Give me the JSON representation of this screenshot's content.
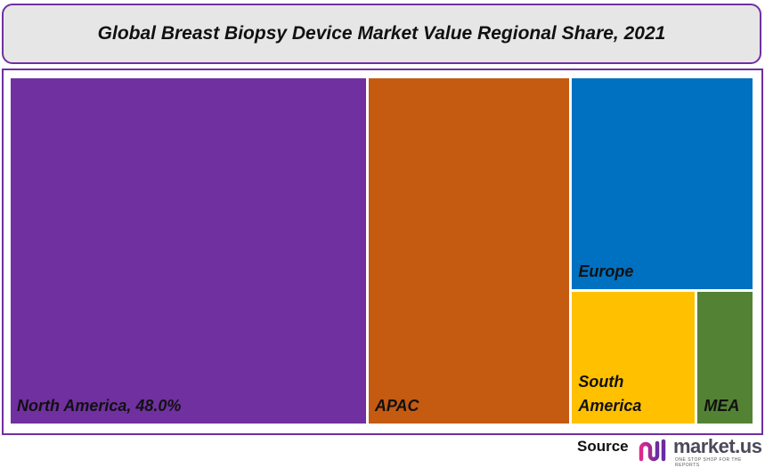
{
  "chart_data": {
    "type": "treemap",
    "title": "Global Breast Biopsy Device Market Value Regional Share, 2021",
    "items": [
      {
        "name": "North America",
        "value": 48.0,
        "label": "North America, 48.0%",
        "color": "#7030a0"
      },
      {
        "name": "APAC",
        "value": 27.3,
        "label": "APAC",
        "color": "#c55a11"
      },
      {
        "name": "Europe",
        "value": 15.0,
        "label": "Europe",
        "color": "#0070c0"
      },
      {
        "name": "South America",
        "value": 6.4,
        "label": "South America",
        "color": "#ffc000"
      },
      {
        "name": "MEA",
        "value": 2.8,
        "label": "MEA",
        "color": "#548235"
      }
    ]
  },
  "footer": {
    "source_label": "Source",
    "brand": "market.us",
    "tagline": "ONE STOP SHOP FOR THE REPORTS"
  },
  "colors": {
    "frame": "#7030a0",
    "title_bg": "#e6e6e6"
  }
}
